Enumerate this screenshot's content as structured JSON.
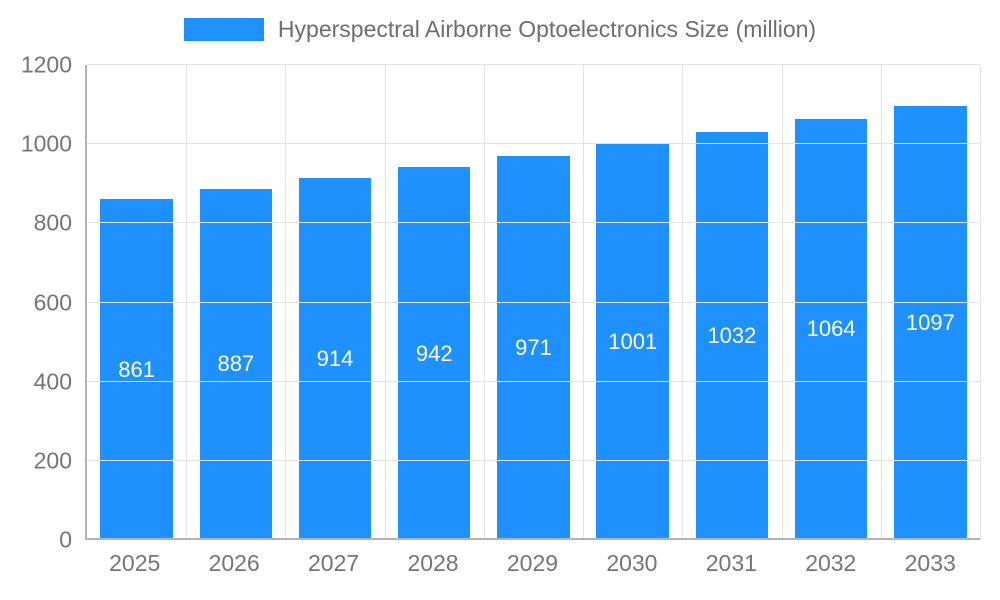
{
  "chart_data": {
    "type": "bar",
    "title": "Hyperspectral Airborne Optoelectronics Size (million)",
    "categories": [
      "2025",
      "2026",
      "2027",
      "2028",
      "2029",
      "2030",
      "2031",
      "2032",
      "2033"
    ],
    "values": [
      861,
      887,
      914,
      942,
      971,
      1001,
      1032,
      1064,
      1097
    ],
    "xlabel": "",
    "ylabel": "",
    "ylim": [
      0,
      1200
    ],
    "yticks": [
      0,
      200,
      400,
      600,
      800,
      1000,
      1200
    ],
    "grid": true,
    "legend_position": "top",
    "bar_color": "#1e90ff",
    "value_label_color": "#ffffff",
    "axis_text_color": "#757575",
    "grid_color": "#e3e3e3"
  }
}
